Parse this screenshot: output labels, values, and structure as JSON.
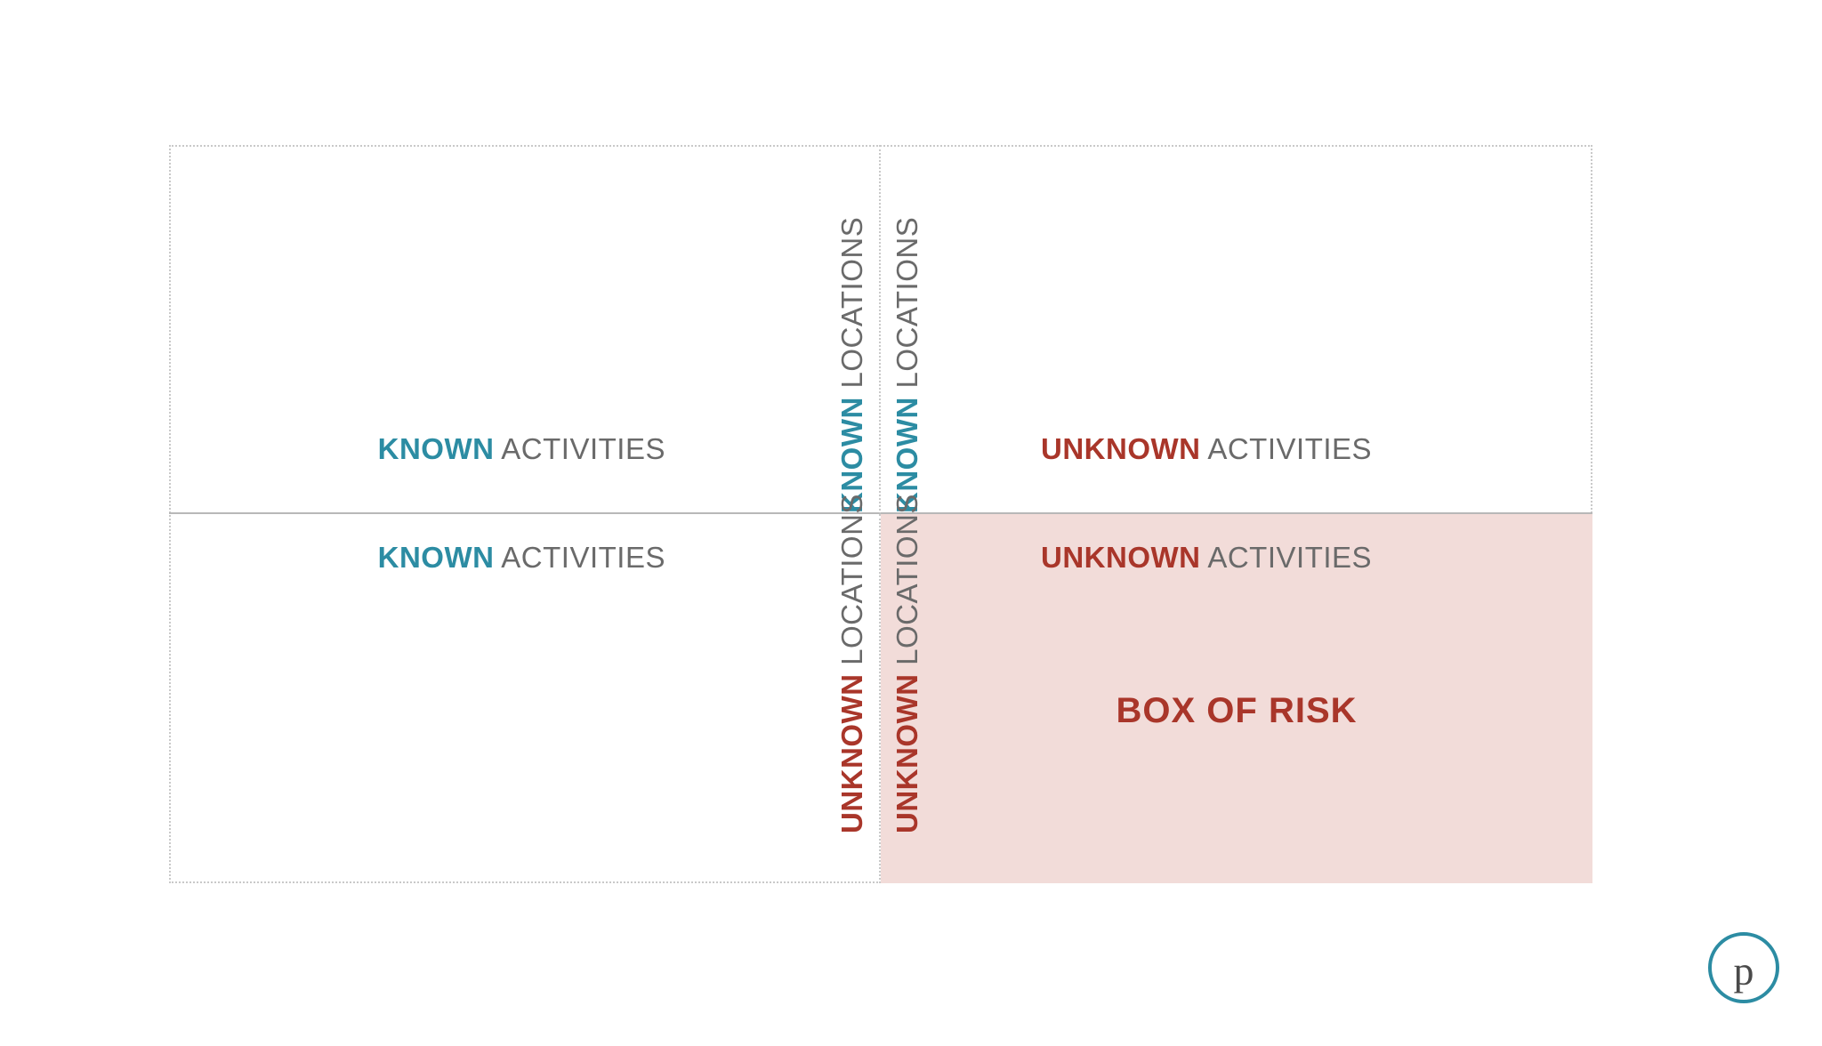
{
  "diagram": {
    "type": "2x2-matrix",
    "border_color": "#c9c9c9",
    "border_style": "dotted",
    "divider_horizontal_color": "#b8b8b8",
    "background_color": "#ffffff",
    "risk_fill_color": "#f2dcd9",
    "font_family": "Helvetica Neue, Arial, sans-serif",
    "label_fontsize": 33,
    "title_fontsize": 40,
    "colors": {
      "known": "#2c8ca3",
      "unknown": "#a9362a",
      "plain": "#6a6a6a"
    },
    "quadrants": {
      "top_left": {
        "activities_strong": "KNOWN",
        "activities_plain": "ACTIVITIES",
        "activities_color": "known",
        "locations_strong": "KNOWN",
        "locations_plain": "LOCATIONS",
        "locations_color": "known"
      },
      "top_right": {
        "activities_strong": "UNKNOWN",
        "activities_plain": "ACTIVITIES",
        "activities_color": "unknown",
        "locations_strong": "KNOWN",
        "locations_plain": "LOCATIONS",
        "locations_color": "known"
      },
      "bottom_left": {
        "activities_strong": "KNOWN",
        "activities_plain": "ACTIVITIES",
        "activities_color": "known",
        "locations_strong": "UNKNOWN",
        "locations_plain": "LOCATIONS",
        "locations_color": "unknown"
      },
      "bottom_right": {
        "activities_strong": "UNKNOWN",
        "activities_plain": "ACTIVITIES",
        "activities_color": "unknown",
        "locations_strong": "UNKNOWN",
        "locations_plain": "LOCATIONS",
        "locations_color": "unknown",
        "title": "BOX OF RISK",
        "title_color": "unknown",
        "fill": true
      }
    }
  },
  "logo": {
    "glyph": "p",
    "ring_color": "#2c8ca3",
    "glyph_color": "#4a4a4a"
  }
}
